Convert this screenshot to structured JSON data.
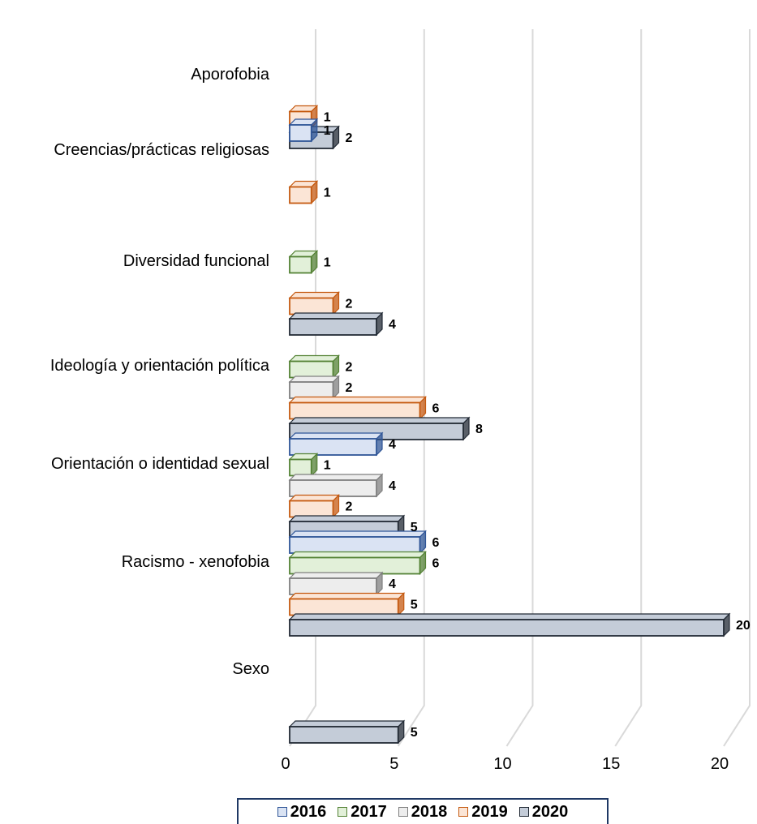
{
  "chart_data": {
    "type": "bar",
    "orientation": "horizontal",
    "style": "3d",
    "categories": [
      "Aporofobia",
      "Creencias/prácticas religiosas",
      "Diversidad funcional",
      "Ideología y orientación política",
      "Orientación o identidad sexual",
      "Racismo - xenofobia",
      "Sexo"
    ],
    "series": [
      {
        "name": "2016",
        "fill": "#dae3f3",
        "stroke": "#2f5597",
        "values": [
          null,
          1,
          null,
          null,
          4,
          6,
          null
        ]
      },
      {
        "name": "2017",
        "fill": "#e2f0d9",
        "stroke": "#548235",
        "values": [
          null,
          null,
          1,
          2,
          1,
          6,
          null
        ]
      },
      {
        "name": "2018",
        "fill": "#ededed",
        "stroke": "#7f7f7f",
        "values": [
          null,
          null,
          null,
          2,
          4,
          4,
          null
        ]
      },
      {
        "name": "2019",
        "fill": "#fbe5d6",
        "stroke": "#c55a11",
        "values": [
          1,
          1,
          2,
          6,
          2,
          5,
          null
        ]
      },
      {
        "name": "2020",
        "fill": "#c4ccd8",
        "stroke": "#222a35",
        "values": [
          2,
          null,
          4,
          8,
          5,
          20,
          5
        ]
      }
    ],
    "xlim": [
      0,
      20
    ],
    "x_ticks": [
      "0",
      "5",
      "10",
      "15",
      "20"
    ],
    "grid": true,
    "legend_position": "bottom"
  }
}
